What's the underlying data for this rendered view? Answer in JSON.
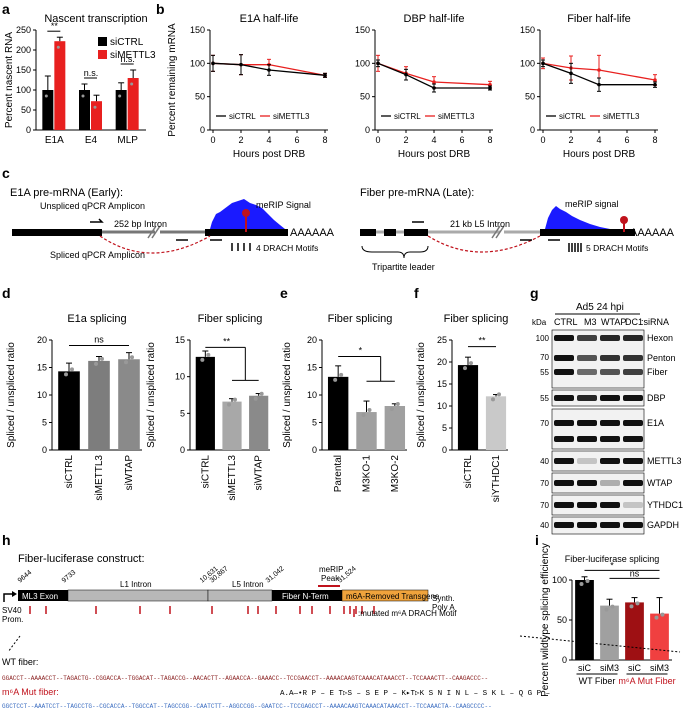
{
  "panel_letters": [
    "a",
    "b",
    "c",
    "d",
    "e",
    "f",
    "g",
    "h",
    "i"
  ],
  "colors": {
    "ctrl": "#000000",
    "kd": "#e8201f",
    "grey": "#a0a0a0",
    "darkgrey": "#7d7d7d",
    "wtap": "#8a8a8a",
    "mutdark": "#9e1013",
    "meRIP": "#1a1aff",
    "orange": "#f0a33c",
    "mark": "#c0121c",
    "lightgrey": "#d0d0d0"
  },
  "chart_data": [
    {
      "id": "a",
      "type": "bar",
      "title": "Nascent transcription",
      "ylabel": "Percent nascent RNA",
      "ylim": [
        0,
        250
      ],
      "yticks": [
        0,
        50,
        100,
        150,
        200,
        250
      ],
      "categories": [
        "E1A",
        "E4",
        "MLP"
      ],
      "series": [
        {
          "name": "siCTRL",
          "values": [
            100,
            100,
            100
          ],
          "errors": [
            35,
            15,
            18
          ]
        },
        {
          "name": "siMETTL3",
          "values": [
            222,
            72,
            130
          ],
          "errors": [
            10,
            15,
            20
          ]
        }
      ],
      "significance": [
        "**",
        "n.s.",
        "n.s."
      ]
    },
    {
      "id": "b1",
      "type": "line",
      "title": "E1A half-life",
      "xlabel": "Hours post DRB",
      "ylabel": "Percent remaining mRNA",
      "x": [
        0,
        2,
        4,
        8
      ],
      "ylim": [
        0,
        150
      ],
      "yticks": [
        0,
        50,
        100,
        150
      ],
      "xticks": [
        0,
        2,
        4,
        6,
        8
      ],
      "series": [
        {
          "name": "siCTRL",
          "values": [
            100,
            98,
            90,
            82
          ],
          "errors": [
            12,
            15,
            8,
            3
          ]
        },
        {
          "name": "siMETTL3",
          "values": [
            100,
            98,
            98,
            82
          ],
          "errors": [
            12,
            15,
            8,
            3
          ]
        }
      ]
    },
    {
      "id": "b2",
      "type": "line",
      "title": "DBP half-life",
      "xlabel": "Hours post DRB",
      "x": [
        0,
        2,
        4,
        8
      ],
      "ylim": [
        0,
        150
      ],
      "yticks": [
        0,
        50,
        100,
        150
      ],
      "xticks": [
        0,
        2,
        4,
        6,
        8
      ],
      "series": [
        {
          "name": "siCTRL",
          "values": [
            100,
            83,
            63,
            63
          ],
          "errors": [
            5,
            8,
            6,
            3
          ]
        },
        {
          "name": "siMETTL3",
          "values": [
            100,
            85,
            72,
            68
          ],
          "errors": [
            12,
            10,
            8,
            5
          ]
        }
      ]
    },
    {
      "id": "b3",
      "type": "line",
      "title": "Fiber half-life",
      "xlabel": "Hours post DRB",
      "x": [
        0,
        2,
        4,
        8
      ],
      "ylim": [
        0,
        150
      ],
      "yticks": [
        0,
        50,
        100,
        150
      ],
      "xticks": [
        0,
        2,
        4,
        6,
        8
      ],
      "series": [
        {
          "name": "siCTRL",
          "values": [
            100,
            85,
            68,
            68
          ],
          "errors": [
            5,
            15,
            10,
            4
          ]
        },
        {
          "name": "siMETTL3",
          "values": [
            100,
            93,
            90,
            75
          ],
          "errors": [
            8,
            18,
            22,
            8
          ]
        }
      ]
    },
    {
      "id": "d1",
      "type": "bar",
      "title": "E1a splicing",
      "ylabel": "Spliced / unspliced ratio",
      "ylim": [
        0,
        20
      ],
      "yticks": [
        0,
        5,
        10,
        15,
        20
      ],
      "categories": [
        "siCTRL",
        "siMETTL3",
        "siWTAP"
      ],
      "values": [
        14.3,
        16.2,
        16.5
      ],
      "errors": [
        1.5,
        0.8,
        1.2
      ],
      "significance": "ns"
    },
    {
      "id": "d2",
      "type": "bar",
      "title": "Fiber splicing",
      "ylabel": "Spliced / unspliced ratio",
      "ylim": [
        0,
        15
      ],
      "yticks": [
        0,
        5,
        10,
        15
      ],
      "categories": [
        "siCTRL",
        "siMETTL3",
        "siWTAP"
      ],
      "values": [
        12.7,
        6.6,
        7.4
      ],
      "errors": [
        0.8,
        0.4,
        0.3
      ],
      "significance": "**"
    },
    {
      "id": "e",
      "type": "bar",
      "title": "Fiber splicing",
      "ylabel": "Spliced / unspliced ratio",
      "ylim": [
        0,
        20
      ],
      "yticks": [
        0,
        5,
        10,
        15,
        20
      ],
      "categories": [
        "Parental",
        "M3KO-1",
        "M3KO-2"
      ],
      "values": [
        13.3,
        6.9,
        8.0
      ],
      "errors": [
        2.0,
        2.0,
        0.4
      ],
      "significance": "*"
    },
    {
      "id": "f",
      "type": "bar",
      "title": "Fiber splicing",
      "ylabel": "Spliced / unspliced ratio",
      "ylim": [
        0,
        25
      ],
      "yticks": [
        0,
        5,
        10,
        15,
        20,
        25
      ],
      "categories": [
        "siCTRL",
        "siYTHDC1"
      ],
      "values": [
        19.3,
        12.2
      ],
      "errors": [
        1.8,
        0.4
      ],
      "significance": "**"
    },
    {
      "id": "i",
      "type": "bar",
      "title": "Fiber-luciferase splicing",
      "ylabel": "Percent wildtype splicing efficiency",
      "ylim": [
        0,
        100
      ],
      "yticks": [
        0,
        50,
        100
      ],
      "categories": [
        "siC",
        "siM3",
        "siC",
        "siM3"
      ],
      "values": [
        100,
        68,
        72,
        58
      ],
      "errors": [
        4,
        8,
        6,
        20
      ],
      "groups": [
        "WT Fiber",
        "m⁶A Mut Fiber"
      ],
      "significance": [
        "*",
        "ns"
      ]
    }
  ],
  "c": {
    "e1a_title": "E1A pre-mRNA (Early):",
    "fiber_title": "Fiber pre-mRNA (Late):",
    "unspliced": "Unspliced qPCR Amplicon",
    "spliced": "Spliced qPCR Amplicon",
    "intron": "252 bp Intron",
    "meRIP1": "meRIP Signal",
    "meRIP2": "meRIP signal",
    "drach4": "4 DRACH Motifs",
    "drach5": "5 DRACH Motifs",
    "polyA": "AAAAAA",
    "l5": "21 kb L5 Intron",
    "tripartite": "Tripartite leader"
  },
  "g": {
    "title": "Ad5 24 hpi",
    "kda": "kDa",
    "lanes": [
      "CTRL",
      "M3",
      "WTAP",
      "DC1"
    ],
    "sirna": ":siRNA",
    "bands": [
      "Hexon",
      "Penton",
      "Fiber",
      "DBP",
      "E1A",
      "METTL3",
      "WTAP",
      "YTHDC1",
      "GAPDH"
    ],
    "markers": [
      "100",
      "70",
      "55",
      "70",
      "40",
      "70",
      "55",
      "70",
      "40"
    ]
  },
  "h": {
    "title": "Fiber-luciferase construct:",
    "positions": [
      "9644",
      "9733",
      "10,631",
      "30,867",
      "31,042",
      "31,524"
    ],
    "sv40": "SV40",
    "prom": "Prom.",
    "ml3": "ML3 Exon",
    "l1": "L1 Intron",
    "l5": "L5 Intron",
    "fiber": "Fiber N-Term",
    "transgene": "m6A-Removed Transgene",
    "meRIP": "meRIP",
    "peak": "Peak",
    "motif": ":mutated m⁶A DRACH Motif",
    "synth": "Synth.",
    "polya": "Poly A",
    "wt_label": "WT fiber:",
    "mut_label": "m⁶A Mut fiber:",
    "wt_seq": "GGACCT--AAAACCT--TAGACTG--CGGACCA--TGGACAT--TAGACCG--AACACTT--AGAACCA--GAAACC--TCCGAACCT--AAAACAAGTCAAACATAAACCT--TCCAAACTT--CAAGACCC--",
    "aa_seq": "A.A—•R P – E T▷S – S E P – K▸T▷K S N I N L – S K L – Q G P –",
    "mut_seq": "GGCTCCT--AAATCCT--TAGCCTG--CGCACCA--TGGCCAT--TAGCCGG--CAATCTT--AGGCCGG--GAATCC--TCCGAGCCT--AAAACAAGTCAAACATAAACCT--TCCAAACTA--CAAGCCCC--"
  },
  "i_legend": {
    "wt": "WT Fiber",
    "mut": "m⁶A Mut Fiber"
  }
}
